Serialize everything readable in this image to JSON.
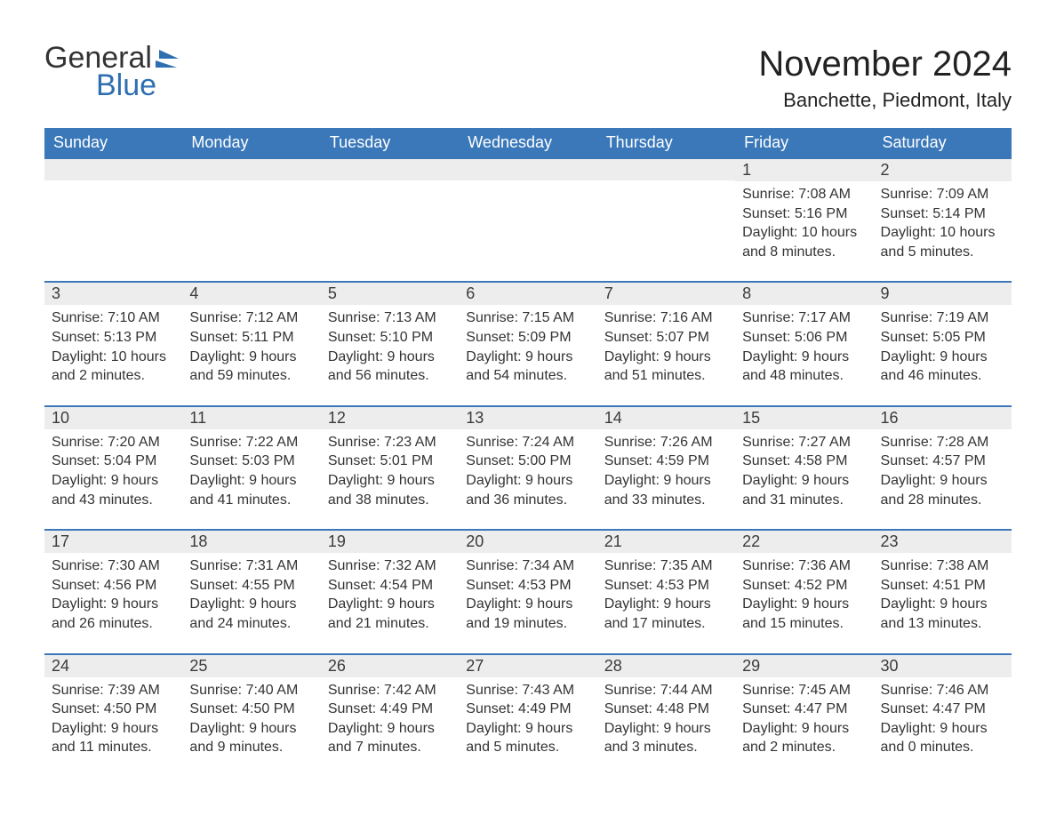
{
  "brand": {
    "word1": "General",
    "word2": "Blue",
    "accent_color": "#2f6fb0"
  },
  "title": "November 2024",
  "location": "Banchette, Piedmont, Italy",
  "colors": {
    "header_bg": "#3a78b9",
    "header_text": "#ffffff",
    "daybar_bg": "#ededed",
    "border": "#3a78b9",
    "body_text": "#333333",
    "page_bg": "#ffffff"
  },
  "typography": {
    "title_fontsize": 40,
    "location_fontsize": 22,
    "header_fontsize": 18,
    "daynum_fontsize": 18,
    "body_fontsize": 16
  },
  "day_headers": [
    "Sunday",
    "Monday",
    "Tuesday",
    "Wednesday",
    "Thursday",
    "Friday",
    "Saturday"
  ],
  "weeks": [
    [
      null,
      null,
      null,
      null,
      null,
      {
        "num": "1",
        "sunrise": "Sunrise: 7:08 AM",
        "sunset": "Sunset: 5:16 PM",
        "daylight": "Daylight: 10 hours and 8 minutes."
      },
      {
        "num": "2",
        "sunrise": "Sunrise: 7:09 AM",
        "sunset": "Sunset: 5:14 PM",
        "daylight": "Daylight: 10 hours and 5 minutes."
      }
    ],
    [
      {
        "num": "3",
        "sunrise": "Sunrise: 7:10 AM",
        "sunset": "Sunset: 5:13 PM",
        "daylight": "Daylight: 10 hours and 2 minutes."
      },
      {
        "num": "4",
        "sunrise": "Sunrise: 7:12 AM",
        "sunset": "Sunset: 5:11 PM",
        "daylight": "Daylight: 9 hours and 59 minutes."
      },
      {
        "num": "5",
        "sunrise": "Sunrise: 7:13 AM",
        "sunset": "Sunset: 5:10 PM",
        "daylight": "Daylight: 9 hours and 56 minutes."
      },
      {
        "num": "6",
        "sunrise": "Sunrise: 7:15 AM",
        "sunset": "Sunset: 5:09 PM",
        "daylight": "Daylight: 9 hours and 54 minutes."
      },
      {
        "num": "7",
        "sunrise": "Sunrise: 7:16 AM",
        "sunset": "Sunset: 5:07 PM",
        "daylight": "Daylight: 9 hours and 51 minutes."
      },
      {
        "num": "8",
        "sunrise": "Sunrise: 7:17 AM",
        "sunset": "Sunset: 5:06 PM",
        "daylight": "Daylight: 9 hours and 48 minutes."
      },
      {
        "num": "9",
        "sunrise": "Sunrise: 7:19 AM",
        "sunset": "Sunset: 5:05 PM",
        "daylight": "Daylight: 9 hours and 46 minutes."
      }
    ],
    [
      {
        "num": "10",
        "sunrise": "Sunrise: 7:20 AM",
        "sunset": "Sunset: 5:04 PM",
        "daylight": "Daylight: 9 hours and 43 minutes."
      },
      {
        "num": "11",
        "sunrise": "Sunrise: 7:22 AM",
        "sunset": "Sunset: 5:03 PM",
        "daylight": "Daylight: 9 hours and 41 minutes."
      },
      {
        "num": "12",
        "sunrise": "Sunrise: 7:23 AM",
        "sunset": "Sunset: 5:01 PM",
        "daylight": "Daylight: 9 hours and 38 minutes."
      },
      {
        "num": "13",
        "sunrise": "Sunrise: 7:24 AM",
        "sunset": "Sunset: 5:00 PM",
        "daylight": "Daylight: 9 hours and 36 minutes."
      },
      {
        "num": "14",
        "sunrise": "Sunrise: 7:26 AM",
        "sunset": "Sunset: 4:59 PM",
        "daylight": "Daylight: 9 hours and 33 minutes."
      },
      {
        "num": "15",
        "sunrise": "Sunrise: 7:27 AM",
        "sunset": "Sunset: 4:58 PM",
        "daylight": "Daylight: 9 hours and 31 minutes."
      },
      {
        "num": "16",
        "sunrise": "Sunrise: 7:28 AM",
        "sunset": "Sunset: 4:57 PM",
        "daylight": "Daylight: 9 hours and 28 minutes."
      }
    ],
    [
      {
        "num": "17",
        "sunrise": "Sunrise: 7:30 AM",
        "sunset": "Sunset: 4:56 PM",
        "daylight": "Daylight: 9 hours and 26 minutes."
      },
      {
        "num": "18",
        "sunrise": "Sunrise: 7:31 AM",
        "sunset": "Sunset: 4:55 PM",
        "daylight": "Daylight: 9 hours and 24 minutes."
      },
      {
        "num": "19",
        "sunrise": "Sunrise: 7:32 AM",
        "sunset": "Sunset: 4:54 PM",
        "daylight": "Daylight: 9 hours and 21 minutes."
      },
      {
        "num": "20",
        "sunrise": "Sunrise: 7:34 AM",
        "sunset": "Sunset: 4:53 PM",
        "daylight": "Daylight: 9 hours and 19 minutes."
      },
      {
        "num": "21",
        "sunrise": "Sunrise: 7:35 AM",
        "sunset": "Sunset: 4:53 PM",
        "daylight": "Daylight: 9 hours and 17 minutes."
      },
      {
        "num": "22",
        "sunrise": "Sunrise: 7:36 AM",
        "sunset": "Sunset: 4:52 PM",
        "daylight": "Daylight: 9 hours and 15 minutes."
      },
      {
        "num": "23",
        "sunrise": "Sunrise: 7:38 AM",
        "sunset": "Sunset: 4:51 PM",
        "daylight": "Daylight: 9 hours and 13 minutes."
      }
    ],
    [
      {
        "num": "24",
        "sunrise": "Sunrise: 7:39 AM",
        "sunset": "Sunset: 4:50 PM",
        "daylight": "Daylight: 9 hours and 11 minutes."
      },
      {
        "num": "25",
        "sunrise": "Sunrise: 7:40 AM",
        "sunset": "Sunset: 4:50 PM",
        "daylight": "Daylight: 9 hours and 9 minutes."
      },
      {
        "num": "26",
        "sunrise": "Sunrise: 7:42 AM",
        "sunset": "Sunset: 4:49 PM",
        "daylight": "Daylight: 9 hours and 7 minutes."
      },
      {
        "num": "27",
        "sunrise": "Sunrise: 7:43 AM",
        "sunset": "Sunset: 4:49 PM",
        "daylight": "Daylight: 9 hours and 5 minutes."
      },
      {
        "num": "28",
        "sunrise": "Sunrise: 7:44 AM",
        "sunset": "Sunset: 4:48 PM",
        "daylight": "Daylight: 9 hours and 3 minutes."
      },
      {
        "num": "29",
        "sunrise": "Sunrise: 7:45 AM",
        "sunset": "Sunset: 4:47 PM",
        "daylight": "Daylight: 9 hours and 2 minutes."
      },
      {
        "num": "30",
        "sunrise": "Sunrise: 7:46 AM",
        "sunset": "Sunset: 4:47 PM",
        "daylight": "Daylight: 9 hours and 0 minutes."
      }
    ]
  ]
}
